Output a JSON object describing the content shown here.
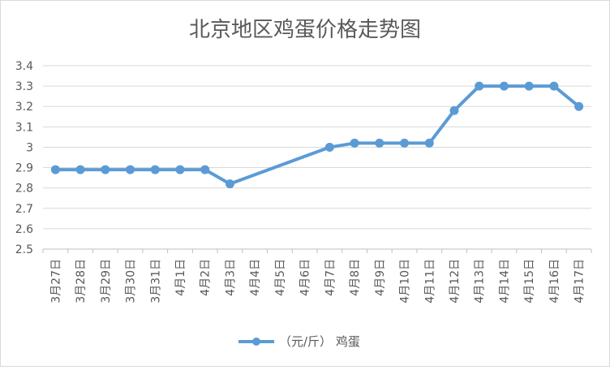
{
  "chart_data": {
    "type": "line",
    "title": "北京地区鸡蛋价格走势图",
    "categories": [
      "3月27日",
      "3月28日",
      "3月29日",
      "3月30日",
      "3月31日",
      "4月1日",
      "4月2日",
      "4月3日",
      "4月4日",
      "4月5日",
      "4月6日",
      "4月7日",
      "4月8日",
      "4月9日",
      "4月10日",
      "4月11日",
      "4月12日",
      "4月13日",
      "4月14日",
      "4月15日",
      "4月16日",
      "4月17日"
    ],
    "series": [
      {
        "name": "（元/斤） 鸡蛋",
        "values": [
          2.89,
          2.89,
          2.89,
          2.89,
          2.89,
          2.89,
          2.89,
          2.82,
          null,
          null,
          null,
          3.0,
          3.02,
          3.02,
          3.02,
          3.02,
          3.18,
          3.3,
          3.3,
          3.3,
          3.3,
          3.2
        ],
        "color": "#5b9bd5"
      }
    ],
    "yticks": [
      "2.5",
      "2.6",
      "2.7",
      "2.8",
      "2.9",
      "3",
      "3.1",
      "3.2",
      "3.3",
      "3.4"
    ],
    "ylim": [
      2.5,
      3.4
    ],
    "grid": true,
    "legend_position": "bottom"
  }
}
